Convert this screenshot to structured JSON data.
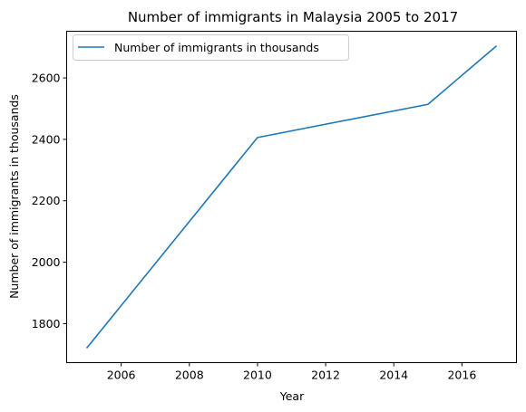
{
  "chart_data": {
    "type": "line",
    "title": "Number of immigrants in Malaysia 2005 to 2017",
    "xlabel": "Year",
    "ylabel": "Number of immigrants in thousands",
    "x": [
      2005,
      2010,
      2015,
      2017
    ],
    "series": [
      {
        "name": "Number of immigrants in thousands",
        "values": [
          1722,
          2406,
          2514,
          2703
        ],
        "color": "#1f77b4"
      }
    ],
    "xlim": [
      2004.4,
      2017.6
    ],
    "ylim": [
      1673,
      2752
    ],
    "xticks": [
      2006,
      2008,
      2010,
      2012,
      2014,
      2016
    ],
    "yticks": [
      1800,
      2000,
      2200,
      2400,
      2600
    ],
    "grid": false,
    "legend_position": "top-left"
  }
}
